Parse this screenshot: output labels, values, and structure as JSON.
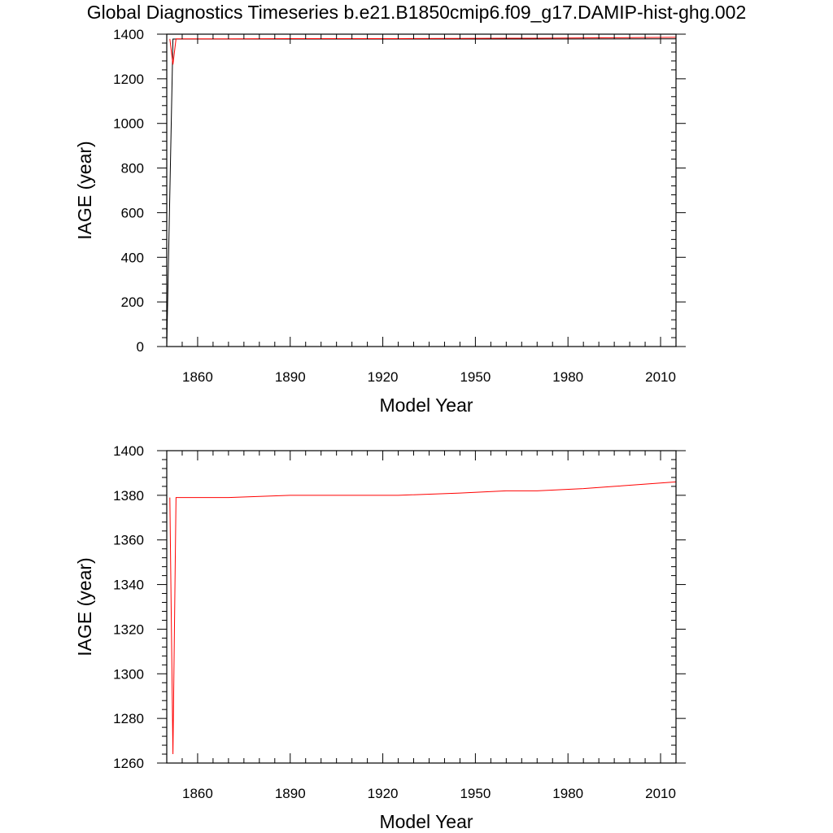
{
  "figure_title": "Global Diagnostics Timeseries b.e21.B1850cmip6.f09_g17.DAMIP-hist-ghg.002",
  "chart_data": [
    {
      "type": "line",
      "title": "",
      "xlabel": "Model Year",
      "ylabel": "IAGE (year)",
      "xlim": [
        1850,
        2015
      ],
      "ylim": [
        0,
        1400
      ],
      "xticks": [
        1860,
        1890,
        1920,
        1950,
        1980,
        2010
      ],
      "yticks": [
        0,
        200,
        400,
        600,
        800,
        1000,
        1200,
        1400
      ],
      "grid": false,
      "series": [
        {
          "color": "#000000",
          "points": [
            [
              1850,
              0
            ],
            [
              1852,
              1378
            ],
            [
              1870,
              1378
            ],
            [
              1920,
              1378
            ],
            [
              1960,
              1378
            ],
            [
              2015,
              1379
            ]
          ]
        },
        {
          "color": "#ff0000",
          "points": [
            [
              1851,
              1379
            ],
            [
              1852,
              1264
            ],
            [
              1853,
              1379
            ],
            [
              1870,
              1379
            ],
            [
              1890,
              1380
            ],
            [
              1925,
              1380
            ],
            [
              1945,
              1381
            ],
            [
              1960,
              1382
            ],
            [
              1970,
              1382
            ],
            [
              1985,
              1383
            ],
            [
              1995,
              1384
            ],
            [
              2005,
              1385
            ],
            [
              2015,
              1386
            ]
          ]
        }
      ]
    },
    {
      "type": "line",
      "title": "",
      "xlabel": "Model Year",
      "ylabel": "IAGE (year)",
      "xlim": [
        1850,
        2015
      ],
      "ylim": [
        1260,
        1400
      ],
      "xticks": [
        1860,
        1890,
        1920,
        1950,
        1980,
        2010
      ],
      "yticks": [
        1260,
        1280,
        1300,
        1320,
        1340,
        1360,
        1380,
        1400
      ],
      "grid": false,
      "series": [
        {
          "color": "#ff0000",
          "points": [
            [
              1851,
              1379
            ],
            [
              1852,
              1264
            ],
            [
              1853,
              1379
            ],
            [
              1870,
              1379
            ],
            [
              1890,
              1380
            ],
            [
              1925,
              1380
            ],
            [
              1945,
              1381
            ],
            [
              1960,
              1382
            ],
            [
              1970,
              1382
            ],
            [
              1985,
              1383
            ],
            [
              1995,
              1384
            ],
            [
              2005,
              1385
            ],
            [
              2015,
              1386
            ]
          ]
        }
      ]
    }
  ]
}
